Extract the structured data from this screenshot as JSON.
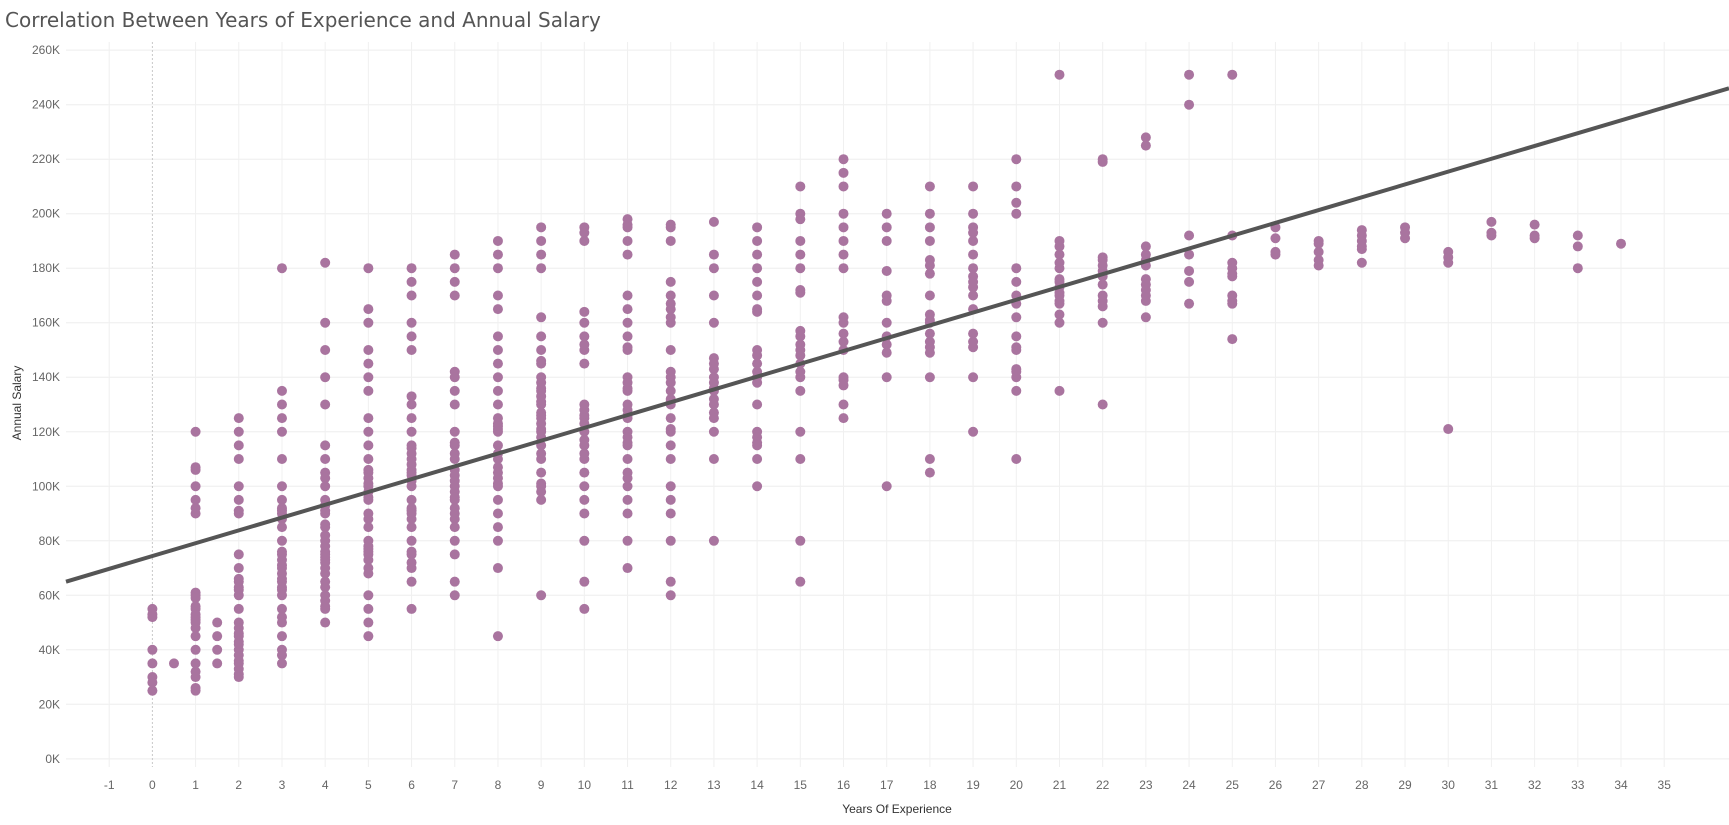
{
  "chart_data": {
    "type": "scatter",
    "title": "Correlation Between Years of Experience and Annual Salary",
    "xlabel": "Years Of Experience",
    "ylabel": "Annual Salary",
    "xlim": [
      -2,
      36.5
    ],
    "ylim": [
      -3000,
      263000
    ],
    "x_ticks": [
      -1,
      0,
      1,
      2,
      3,
      4,
      5,
      6,
      7,
      8,
      9,
      10,
      11,
      12,
      13,
      14,
      15,
      16,
      17,
      18,
      19,
      20,
      21,
      22,
      23,
      24,
      25,
      26,
      27,
      28,
      29,
      30,
      31,
      32,
      33,
      34,
      35
    ],
    "y_ticks": [
      {
        "value": 0,
        "label": "0K"
      },
      {
        "value": 20000,
        "label": "20K"
      },
      {
        "value": 40000,
        "label": "40K"
      },
      {
        "value": 60000,
        "label": "60K"
      },
      {
        "value": 80000,
        "label": "80K"
      },
      {
        "value": 100000,
        "label": "100K"
      },
      {
        "value": 120000,
        "label": "120K"
      },
      {
        "value": 140000,
        "label": "140K"
      },
      {
        "value": 160000,
        "label": "160K"
      },
      {
        "value": 180000,
        "label": "180K"
      },
      {
        "value": 200000,
        "label": "200K"
      },
      {
        "value": 220000,
        "label": "220K"
      },
      {
        "value": 240000,
        "label": "240K"
      },
      {
        "value": 260000,
        "label": "260K"
      }
    ],
    "grid": true,
    "point_color": "#a9749f",
    "trend_color": "#555555",
    "trend_line": {
      "x": [
        -2,
        36.5
      ],
      "y": [
        65000,
        246000
      ]
    },
    "points": [
      {
        "x": 0,
        "y": [
          55000,
          53000,
          52000,
          40000,
          35000,
          30000,
          28000,
          25000
        ]
      },
      {
        "x": 0.5,
        "y": [
          35000
        ]
      },
      {
        "x": 1,
        "y": [
          120000,
          107000,
          106000,
          100000,
          95000,
          92000,
          90000,
          61000,
          60000,
          59000,
          56000,
          55000,
          53000,
          52000,
          51000,
          50000,
          48000,
          45000,
          40000,
          35000,
          32000,
          30000,
          26000,
          25000
        ]
      },
      {
        "x": 1.5,
        "y": [
          50000,
          45000,
          40000,
          35000
        ]
      },
      {
        "x": 2,
        "y": [
          125000,
          120000,
          115000,
          110000,
          100000,
          95000,
          91000,
          90000,
          75000,
          70000,
          66000,
          65000,
          63000,
          62000,
          60000,
          55000,
          50000,
          48000,
          46000,
          45000,
          43000,
          42000,
          40000,
          38000,
          36000,
          35000,
          33000,
          31000,
          30000
        ]
      },
      {
        "x": 3,
        "y": [
          180000,
          135000,
          130000,
          125000,
          120000,
          110000,
          100000,
          95000,
          92000,
          91000,
          90000,
          88000,
          85000,
          80000,
          76000,
          75000,
          73000,
          71000,
          70000,
          68000,
          66000,
          65000,
          63000,
          62000,
          60000,
          55000,
          52000,
          50000,
          45000,
          40000,
          38000,
          35000
        ]
      },
      {
        "x": 4,
        "y": [
          182000,
          160000,
          150000,
          140000,
          130000,
          115000,
          110000,
          105000,
          103000,
          100000,
          95000,
          93000,
          91000,
          90000,
          86000,
          85000,
          82000,
          80000,
          78000,
          76000,
          75000,
          74000,
          73000,
          72000,
          70000,
          68000,
          65000,
          63000,
          60000,
          58000,
          56000,
          55000,
          50000
        ]
      },
      {
        "x": 5,
        "y": [
          180000,
          165000,
          160000,
          150000,
          145000,
          140000,
          135000,
          125000,
          120000,
          115000,
          110000,
          106000,
          105000,
          103000,
          101000,
          100000,
          98000,
          96000,
          95000,
          90000,
          88000,
          85000,
          80000,
          78000,
          77000,
          76000,
          75000,
          73000,
          70000,
          68000,
          60000,
          55000,
          50000,
          45000
        ]
      },
      {
        "x": 6,
        "y": [
          180000,
          175000,
          170000,
          160000,
          155000,
          150000,
          133000,
          130000,
          125000,
          120000,
          115000,
          114000,
          112000,
          110000,
          108000,
          106000,
          105000,
          104000,
          102000,
          100000,
          95000,
          92000,
          91000,
          90000,
          88000,
          85000,
          80000,
          76000,
          75000,
          72000,
          70000,
          65000,
          55000
        ]
      },
      {
        "x": 7,
        "y": [
          185000,
          180000,
          175000,
          170000,
          142000,
          140000,
          135000,
          130000,
          120000,
          116000,
          115000,
          112000,
          110000,
          106000,
          104000,
          102000,
          100000,
          98000,
          96000,
          95000,
          92000,
          90000,
          88000,
          85000,
          80000,
          75000,
          65000,
          60000
        ]
      },
      {
        "x": 8,
        "y": [
          190000,
          185000,
          180000,
          170000,
          165000,
          155000,
          150000,
          145000,
          140000,
          135000,
          130000,
          125000,
          123000,
          122000,
          121000,
          120000,
          115000,
          112000,
          110000,
          107000,
          105000,
          103000,
          101000,
          100000,
          95000,
          90000,
          85000,
          80000,
          70000,
          45000
        ]
      },
      {
        "x": 9,
        "y": [
          195000,
          190000,
          185000,
          180000,
          162000,
          155000,
          150000,
          146000,
          145000,
          140000,
          138000,
          136000,
          135000,
          133000,
          131000,
          130000,
          127000,
          126000,
          125000,
          123000,
          121000,
          120000,
          118000,
          115000,
          112000,
          110000,
          105000,
          101000,
          100000,
          98000,
          95000,
          60000
        ]
      },
      {
        "x": 10,
        "y": [
          195000,
          193000,
          190000,
          164000,
          160000,
          155000,
          152000,
          150000,
          145000,
          130000,
          128000,
          126000,
          125000,
          123000,
          120000,
          117000,
          115000,
          112000,
          110000,
          105000,
          100000,
          95000,
          90000,
          80000,
          65000,
          55000
        ]
      },
      {
        "x": 11,
        "y": [
          198000,
          196000,
          195000,
          190000,
          185000,
          170000,
          165000,
          160000,
          155000,
          151000,
          150000,
          140000,
          138000,
          136000,
          135000,
          130000,
          128000,
          126000,
          125000,
          120000,
          118000,
          116000,
          115000,
          110000,
          105000,
          103000,
          100000,
          95000,
          90000,
          80000,
          70000
        ]
      },
      {
        "x": 12,
        "y": [
          196000,
          195000,
          190000,
          175000,
          170000,
          167000,
          165000,
          162000,
          160000,
          150000,
          142000,
          140000,
          138000,
          135000,
          132000,
          131000,
          130000,
          125000,
          121000,
          120000,
          115000,
          110000,
          100000,
          95000,
          90000,
          80000,
          65000,
          60000
        ]
      },
      {
        "x": 13,
        "y": [
          197000,
          185000,
          180000,
          170000,
          160000,
          147000,
          145000,
          143000,
          140000,
          138000,
          136000,
          135000,
          132000,
          130000,
          127000,
          125000,
          120000,
          110000,
          80000
        ]
      },
      {
        "x": 14,
        "y": [
          195000,
          190000,
          185000,
          180000,
          175000,
          170000,
          165000,
          164000,
          150000,
          148000,
          145000,
          142000,
          140000,
          138000,
          130000,
          120000,
          118000,
          116000,
          115000,
          110000,
          100000
        ]
      },
      {
        "x": 15,
        "y": [
          210000,
          200000,
          198000,
          190000,
          185000,
          180000,
          172000,
          171000,
          157000,
          155000,
          152000,
          150000,
          148000,
          145000,
          142000,
          140000,
          135000,
          120000,
          110000,
          80000,
          65000
        ]
      },
      {
        "x": 16,
        "y": [
          220000,
          215000,
          210000,
          200000,
          195000,
          190000,
          185000,
          180000,
          162000,
          160000,
          156000,
          153000,
          150000,
          140000,
          139000,
          137000,
          130000,
          125000
        ]
      },
      {
        "x": 17,
        "y": [
          200000,
          195000,
          190000,
          179000,
          170000,
          168000,
          160000,
          155000,
          152000,
          149000,
          140000,
          100000
        ]
      },
      {
        "x": 18,
        "y": [
          210000,
          200000,
          195000,
          190000,
          183000,
          181000,
          178000,
          170000,
          163000,
          161000,
          160000,
          156000,
          153000,
          151000,
          149000,
          140000,
          110000,
          105000
        ]
      },
      {
        "x": 19,
        "y": [
          210000,
          200000,
          195000,
          193000,
          190000,
          185000,
          180000,
          177000,
          175000,
          173000,
          170000,
          165000,
          156000,
          153000,
          151000,
          140000,
          120000
        ]
      },
      {
        "x": 20,
        "y": [
          220000,
          210000,
          204000,
          200000,
          180000,
          175000,
          170000,
          167000,
          162000,
          155000,
          151000,
          150000,
          143000,
          142000,
          140000,
          135000,
          110000
        ]
      },
      {
        "x": 21,
        "y": [
          251000,
          190000,
          188000,
          185000,
          182000,
          180000,
          176000,
          175000,
          173000,
          171000,
          170000,
          168000,
          167000,
          163000,
          160000,
          135000
        ]
      },
      {
        "x": 22,
        "y": [
          220000,
          219000,
          184000,
          183000,
          181000,
          179000,
          177000,
          174000,
          170000,
          168000,
          166000,
          160000,
          130000
        ]
      },
      {
        "x": 23,
        "y": [
          228000,
          225000,
          188000,
          185000,
          183000,
          181000,
          176000,
          174000,
          172000,
          170000,
          168000,
          162000
        ]
      },
      {
        "x": 24,
        "y": [
          251000,
          240000,
          192000,
          185000,
          179000,
          175000,
          167000
        ]
      },
      {
        "x": 25,
        "y": [
          251000,
          192000,
          182000,
          180000,
          178000,
          177000,
          170000,
          168000,
          167000,
          154000
        ]
      },
      {
        "x": 26,
        "y": [
          195000,
          191000,
          186000,
          185000
        ]
      },
      {
        "x": 27,
        "y": [
          190000,
          189000,
          186000,
          183000,
          181000
        ]
      },
      {
        "x": 28,
        "y": [
          194000,
          192000,
          190000,
          188000,
          187000,
          182000
        ]
      },
      {
        "x": 29,
        "y": [
          195000,
          193000,
          191000
        ]
      },
      {
        "x": 30,
        "y": [
          186000,
          184000,
          182000,
          121000
        ]
      },
      {
        "x": 31,
        "y": [
          197000,
          193000,
          192000
        ]
      },
      {
        "x": 32,
        "y": [
          196000,
          192000,
          191000
        ]
      },
      {
        "x": 33,
        "y": [
          192000,
          188000,
          180000
        ]
      },
      {
        "x": 34,
        "y": [
          189000
        ]
      }
    ]
  }
}
